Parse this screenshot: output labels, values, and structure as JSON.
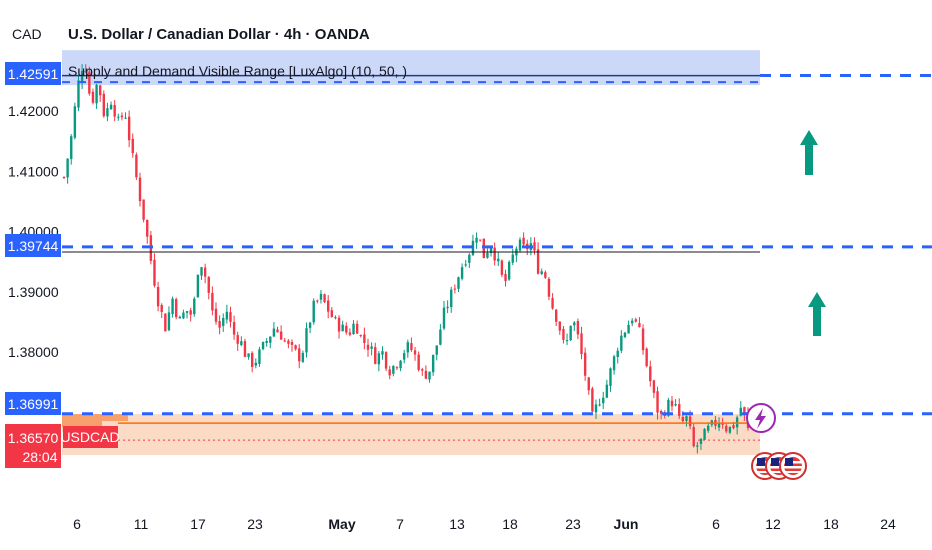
{
  "header": {
    "currency": "CAD",
    "title": "U.S. Dollar / Canadian Dollar · 4h · OANDA",
    "indicator": "Supply and Demand Visible Range [LuxAlgo] (10, 50, )"
  },
  "colors": {
    "up": "#089981",
    "down": "#f23645",
    "level_blue": "#2962ff",
    "supply_zone": "#c6d4f7",
    "demand_zone": "#fcd7c0",
    "demand_ramp": "#f7a06c",
    "price_line": "#ff6d00",
    "arrow": "#089981",
    "event": "#9c27b0",
    "usd_badge": "#d32f2f"
  },
  "icons": [
    "up-arrow-icon",
    "up-arrow-icon",
    "lightning-event-icon",
    "us-flag-icon",
    "us-flag-icon",
    "us-flag-icon"
  ],
  "chart_data": {
    "type": "candlestick",
    "title": "U.S. Dollar / Canadian Dollar · 4h · OANDA",
    "symbol": "USDCAD",
    "ylim": [
      1.3605,
      1.431
    ],
    "yticks": [
      "1.42000",
      "1.41000",
      "1.40000",
      "1.39000",
      "1.38000"
    ],
    "xticks": [
      "6",
      "11",
      "17",
      "23",
      "May",
      "7",
      "13",
      "18",
      "23",
      "Jun",
      "6",
      "12",
      "18",
      "24"
    ],
    "bold_xticks": [
      "May",
      "Jun"
    ],
    "price_tags": {
      "top_level": "1.42591",
      "mid_level": "1.39744",
      "low_level": "1.36991",
      "last_price": "1.36570",
      "symbol": "USDCAD",
      "countdown": "28:04"
    },
    "levels": [
      1.42591,
      1.39744,
      1.36991,
      1.3657
    ],
    "zones": [
      {
        "kind": "supply",
        "from": 1.4243,
        "to": 1.4301
      },
      {
        "kind": "demand",
        "from": 1.3629,
        "to": 1.3697
      }
    ],
    "path": [
      1.409,
      1.415,
      1.424,
      1.429,
      1.421,
      1.425,
      1.419,
      1.422,
      1.418,
      1.42,
      1.413,
      1.407,
      1.401,
      1.394,
      1.388,
      1.384,
      1.389,
      1.385,
      1.387,
      1.386,
      1.396,
      1.392,
      1.386,
      1.384,
      1.387,
      1.383,
      1.382,
      1.379,
      1.378,
      1.38,
      1.382,
      1.384,
      1.383,
      1.381,
      1.38,
      1.379,
      1.384,
      1.388,
      1.389,
      1.387,
      1.385,
      1.384,
      1.383,
      1.385,
      1.382,
      1.381,
      1.379,
      1.38,
      1.377,
      1.378,
      1.38,
      1.381,
      1.379,
      1.376,
      1.377,
      1.381,
      1.386,
      1.389,
      1.392,
      1.395,
      1.397,
      1.4,
      1.396,
      1.398,
      1.395,
      1.391,
      1.395,
      1.398,
      1.397,
      1.398,
      1.394,
      1.393,
      1.388,
      1.385,
      1.38,
      1.386,
      1.382,
      1.376,
      1.369,
      1.372,
      1.374,
      1.378,
      1.382,
      1.384,
      1.386,
      1.383,
      1.378,
      1.373,
      1.369,
      1.371,
      1.372,
      1.368,
      1.369,
      1.364,
      1.365,
      1.367,
      1.368,
      1.369,
      1.367,
      1.368,
      1.371,
      1.367
    ]
  }
}
